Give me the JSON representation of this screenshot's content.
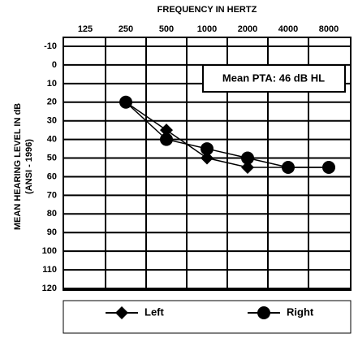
{
  "chart_data": {
    "type": "line",
    "title": "FREQUENCY IN HERTZ",
    "y_label": [
      "MEAN HEARING LEVEL IN dB",
      "(ANSI - 1996)"
    ],
    "annotation": "Mean PTA: 46 dB HL",
    "categories": [
      "125",
      "250",
      "500",
      "1000",
      "2000",
      "4000",
      "8000"
    ],
    "series": [
      {
        "name": "Left",
        "color": "#000000",
        "marker": "diamond",
        "values": [
          null,
          20,
          35,
          50,
          55,
          55,
          55
        ]
      },
      {
        "name": "Right",
        "color": "#000000",
        "marker": "circle",
        "values": [
          null,
          20,
          40,
          45,
          50,
          55,
          55
        ]
      }
    ],
    "ylim": [
      -10,
      120
    ],
    "yticks": [
      -10,
      0,
      10,
      20,
      30,
      40,
      50,
      60,
      70,
      80,
      90,
      100,
      110,
      120
    ],
    "y_inverted": true,
    "grid": true,
    "legend": "bottom"
  }
}
